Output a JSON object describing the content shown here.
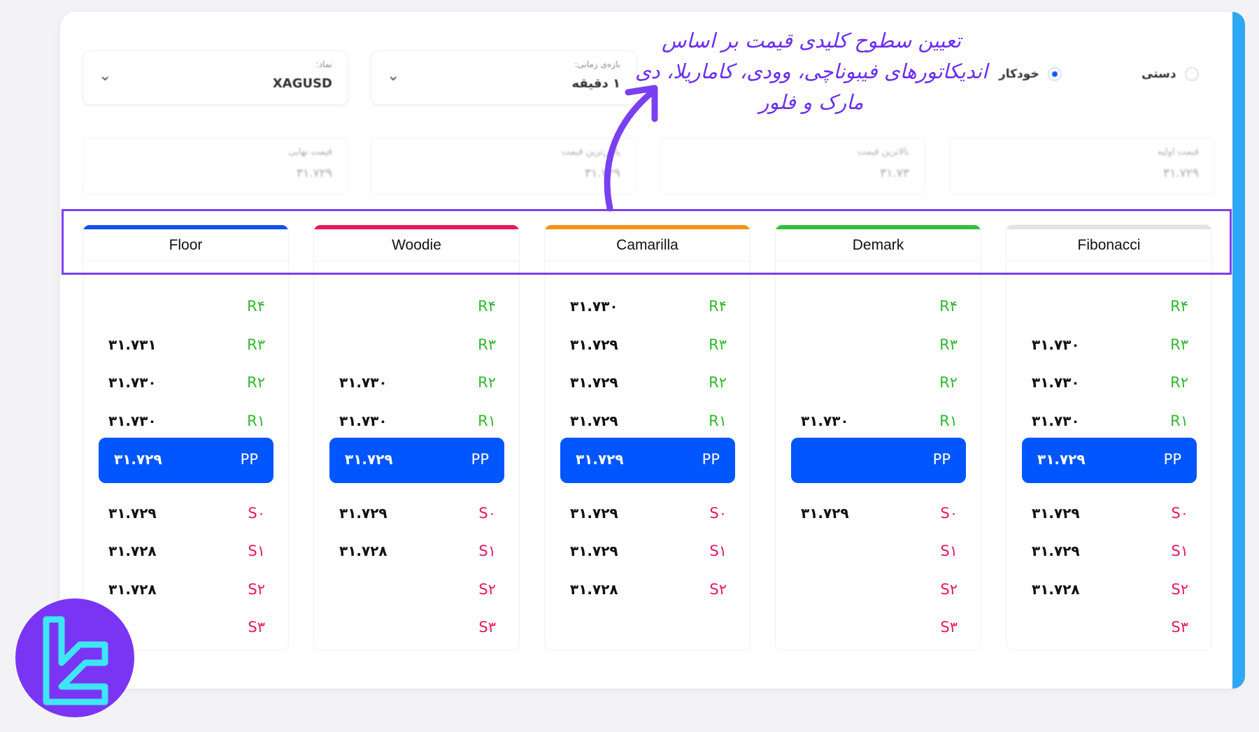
{
  "annotation": "تعیین سطوح کلیدی قیمت بر اساس اندیکاتورهای فیبوناچی، وودی، کاماریلا، دی مارک و فلور",
  "mode": {
    "manual_label": "دستی",
    "auto_label": "خودکار",
    "selected": "auto"
  },
  "selectors": {
    "symbol": {
      "label": "نماد:",
      "value": "XAGUSD"
    },
    "timeframe": {
      "label": "بازه‌ی زمانی:",
      "value": "۱ دقیقه"
    }
  },
  "prices": {
    "close": {
      "label": "قیمت نهایی",
      "value": "۳۱.۷۲۹"
    },
    "low": {
      "label": "پایین‌ترین قیمت",
      "value": "۳۱.۷۲۹"
    },
    "high": {
      "label": "بالاترین قیمت",
      "value": "۳۱.۷۳"
    },
    "open": {
      "label": "قیمت اولیه",
      "value": "۳۱.۷۲۹"
    }
  },
  "columns": [
    {
      "name": "Floor",
      "color": "#1450ee",
      "levels": [
        {
          "label": "R۴",
          "value": ""
        },
        {
          "label": "R۳",
          "value": "۳۱.۷۳۱"
        },
        {
          "label": "R۲",
          "value": "۳۱.۷۳۰"
        },
        {
          "label": "R۱",
          "value": "۳۱.۷۳۰"
        },
        {
          "label": "PP",
          "value": "۳۱.۷۲۹"
        },
        {
          "label": "S۰",
          "value": "۳۱.۷۲۹"
        },
        {
          "label": "S۱",
          "value": "۳۱.۷۲۸"
        },
        {
          "label": "S۲",
          "value": "۳۱.۷۲۸"
        },
        {
          "label": "S۳",
          "value": ""
        }
      ]
    },
    {
      "name": "Woodie",
      "color": "#e8185a",
      "levels": [
        {
          "label": "R۴",
          "value": ""
        },
        {
          "label": "R۳",
          "value": ""
        },
        {
          "label": "R۲",
          "value": "۳۱.۷۳۰"
        },
        {
          "label": "R۱",
          "value": "۳۱.۷۳۰"
        },
        {
          "label": "PP",
          "value": "۳۱.۷۲۹"
        },
        {
          "label": "S۰",
          "value": "۳۱.۷۲۹"
        },
        {
          "label": "S۱",
          "value": "۳۱.۷۲۸"
        },
        {
          "label": "S۲",
          "value": ""
        },
        {
          "label": "S۳",
          "value": ""
        }
      ]
    },
    {
      "name": "Camarilla",
      "color": "#f39214",
      "levels": [
        {
          "label": "R۴",
          "value": "۳۱.۷۳۰"
        },
        {
          "label": "R۳",
          "value": "۳۱.۷۲۹"
        },
        {
          "label": "R۲",
          "value": "۳۱.۷۲۹"
        },
        {
          "label": "R۱",
          "value": "۳۱.۷۲۹"
        },
        {
          "label": "PP",
          "value": "۳۱.۷۲۹"
        },
        {
          "label": "S۰",
          "value": "۳۱.۷۲۹"
        },
        {
          "label": "S۱",
          "value": "۳۱.۷۲۹"
        },
        {
          "label": "S۲",
          "value": "۳۱.۷۲۸"
        }
      ]
    },
    {
      "name": "Demark",
      "color": "#2fc13c",
      "levels": [
        {
          "label": "R۴",
          "value": ""
        },
        {
          "label": "R۳",
          "value": ""
        },
        {
          "label": "R۲",
          "value": ""
        },
        {
          "label": "R۱",
          "value": "۳۱.۷۳۰"
        },
        {
          "label": "PP",
          "value": ""
        },
        {
          "label": "S۰",
          "value": "۳۱.۷۲۹"
        },
        {
          "label": "S۱",
          "value": ""
        },
        {
          "label": "S۲",
          "value": ""
        },
        {
          "label": "S۳",
          "value": ""
        }
      ]
    },
    {
      "name": "Fibonacci",
      "color": "#e2e2e6",
      "levels": [
        {
          "label": "R۴",
          "value": ""
        },
        {
          "label": "R۳",
          "value": "۳۱.۷۳۰"
        },
        {
          "label": "R۲",
          "value": "۳۱.۷۳۰"
        },
        {
          "label": "R۱",
          "value": "۳۱.۷۳۰"
        },
        {
          "label": "PP",
          "value": "۳۱.۷۲۹"
        },
        {
          "label": "S۰",
          "value": "۳۱.۷۲۹"
        },
        {
          "label": "S۱",
          "value": "۳۱.۷۲۹"
        },
        {
          "label": "S۲",
          "value": "۳۱.۷۲۸"
        },
        {
          "label": "S۳",
          "value": ""
        }
      ]
    }
  ],
  "colors": {
    "resistance": "#2fb82f",
    "support": "#e5195a",
    "pivot_bg": "#0256ff",
    "highlight": "#7b3ff2",
    "accent_edge": "#2ea8f5"
  },
  "icons": {
    "dropdown": "chevron-down-icon",
    "logo": "brand-logo"
  }
}
